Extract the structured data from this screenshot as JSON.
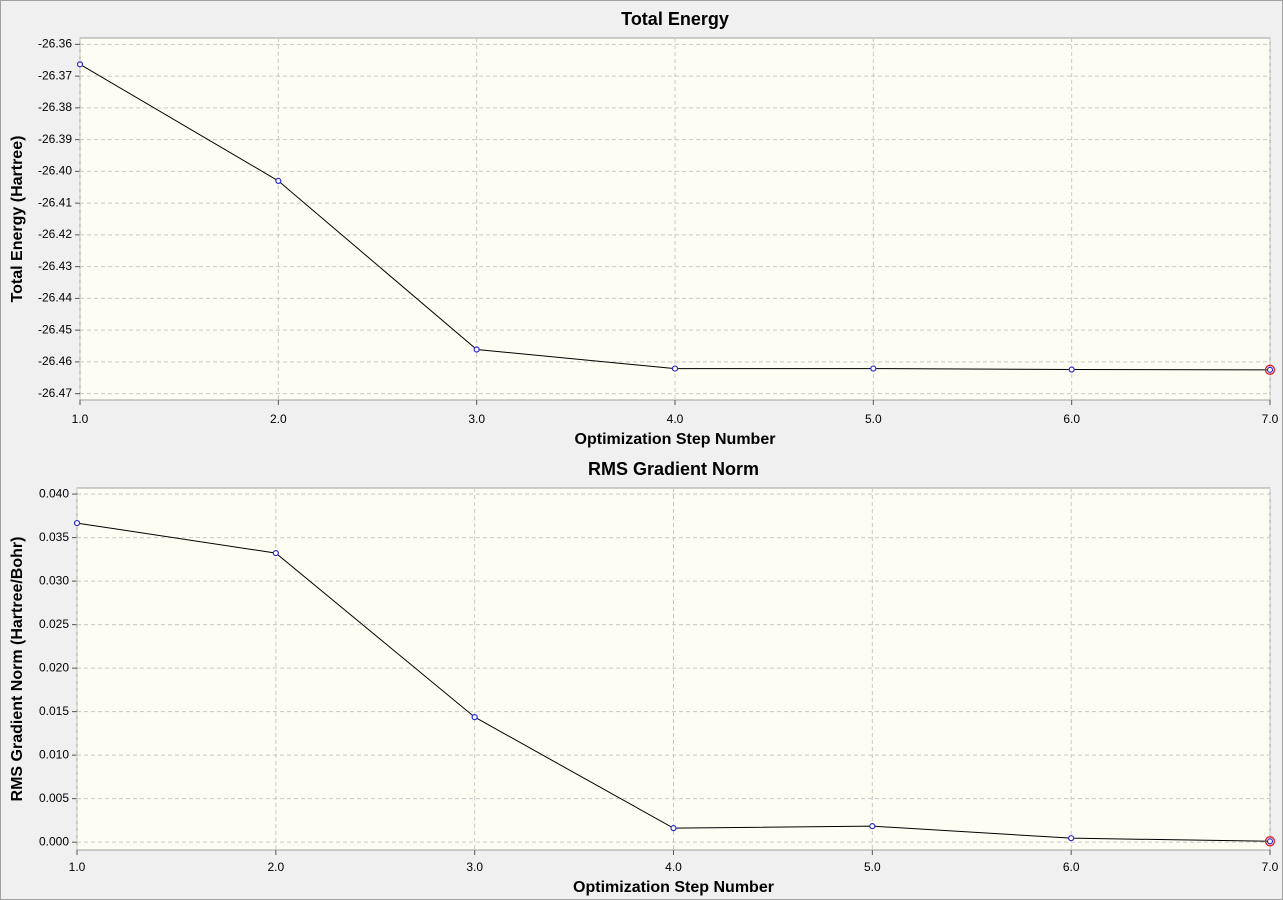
{
  "chart_data": [
    {
      "type": "line",
      "title": "Total Energy",
      "xlabel": "Optimization Step Number",
      "ylabel": "Total Energy (Hartree)",
      "x": [
        1,
        2,
        3,
        4,
        5,
        6,
        7
      ],
      "values": [
        -26.3663,
        -26.403,
        -26.4561,
        -26.4621,
        -26.4621,
        -26.4624,
        -26.4625
      ],
      "color": "#000000",
      "marker_color": "#2b2bd0",
      "highlight_color": "#e0202a",
      "xlim": [
        1,
        7
      ],
      "ylim": [
        -26.472,
        -26.358
      ],
      "xticks": [
        {
          "value": 1,
          "label": "1.0"
        },
        {
          "value": 2,
          "label": "2.0"
        },
        {
          "value": 3,
          "label": "3.0"
        },
        {
          "value": 4,
          "label": "4.0"
        },
        {
          "value": 5,
          "label": "5.0"
        },
        {
          "value": 6,
          "label": "6.0"
        },
        {
          "value": 7,
          "label": "7.0"
        }
      ],
      "yticks": [
        -26.36,
        -26.37,
        -26.38,
        -26.39,
        {
          "value": -26.4,
          "label": "-26.40"
        },
        -26.41,
        -26.42,
        -26.43,
        -26.44,
        -26.45,
        -26.46,
        -26.47
      ],
      "grid": true
    },
    {
      "type": "line",
      "title": "RMS Gradient Norm",
      "xlabel": "Optimization Step Number",
      "ylabel": "RMS Gradient Norm (Hartree/Bohr)",
      "x": [
        1,
        2,
        3,
        4,
        5,
        6,
        7
      ],
      "values": [
        0.03667,
        0.03322,
        0.01437,
        0.00161,
        0.00184,
        0.00046,
        0.0001
      ],
      "color": "#000000",
      "marker_color": "#2b2bd0",
      "highlight_color": "#e0202a",
      "xlim": [
        1,
        7
      ],
      "ylim": [
        -0.0009,
        0.0407
      ],
      "xticks": [
        {
          "value": 1,
          "label": "1.0"
        },
        {
          "value": 2,
          "label": "2.0"
        },
        {
          "value": 3,
          "label": "3.0"
        },
        {
          "value": 4,
          "label": "4.0"
        },
        {
          "value": 5,
          "label": "5.0"
        },
        {
          "value": 6,
          "label": "6.0"
        },
        {
          "value": 7,
          "label": "7.0"
        }
      ],
      "yticks": [
        {
          "value": 0,
          "label": "0.000"
        },
        {
          "value": 0.005,
          "label": "0.005"
        },
        {
          "value": 0.01,
          "label": "0.010"
        },
        {
          "value": 0.015,
          "label": "0.015"
        },
        {
          "value": 0.02,
          "label": "0.020"
        },
        {
          "value": 0.025,
          "label": "0.025"
        },
        {
          "value": 0.03,
          "label": "0.030"
        },
        {
          "value": 0.035,
          "label": "0.035"
        },
        {
          "value": 0.04,
          "label": "0.040"
        }
      ],
      "grid": true
    }
  ]
}
